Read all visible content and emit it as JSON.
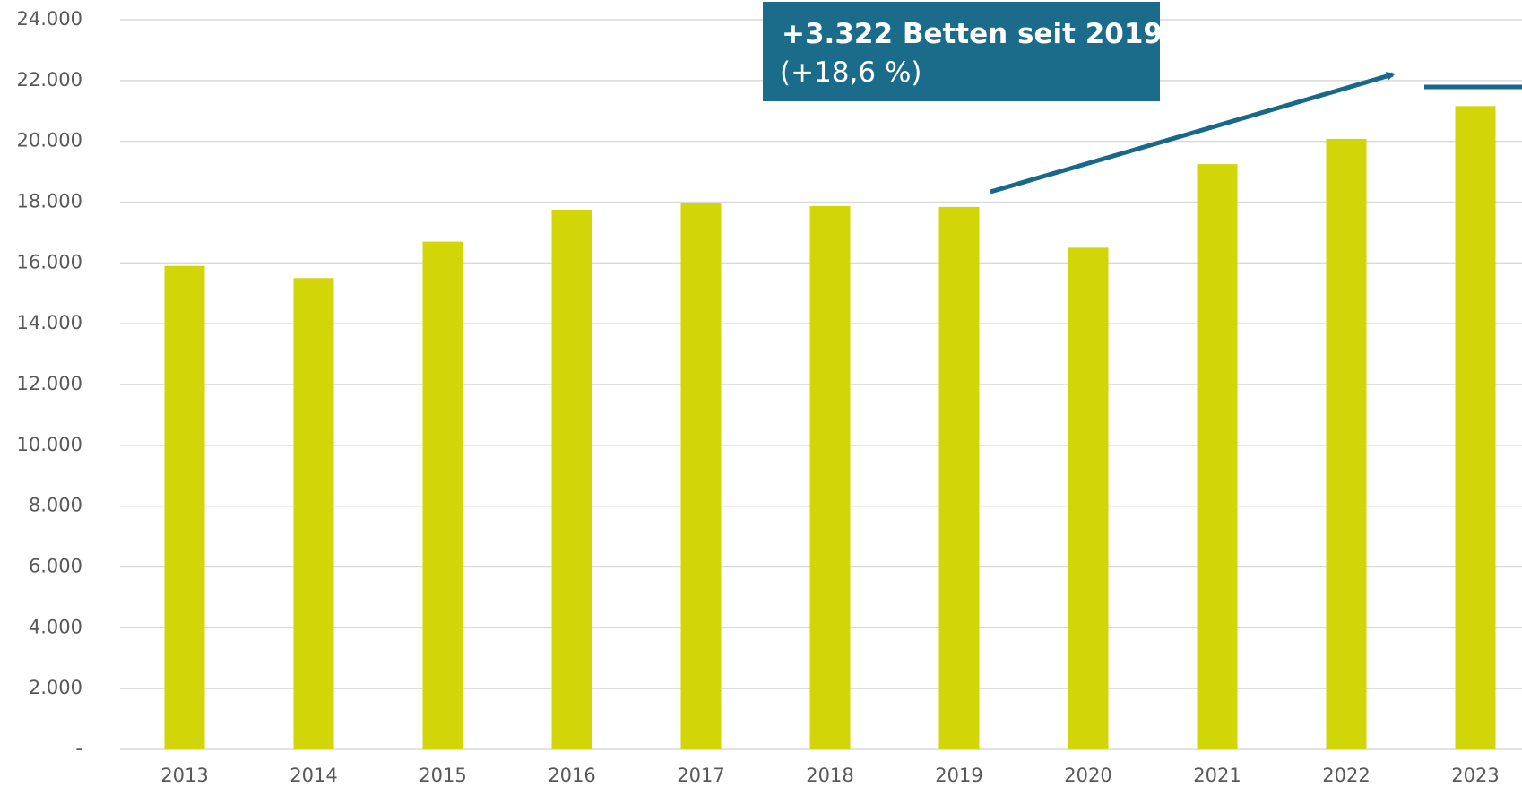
{
  "chart_data": {
    "type": "bar",
    "categories": [
      "2013",
      "2014",
      "2015",
      "2016",
      "2017",
      "2018",
      "2019",
      "2020",
      "2021",
      "2022",
      "2023"
    ],
    "values": [
      15900,
      15500,
      16700,
      17750,
      17970,
      17870,
      17840,
      16500,
      19250,
      20080,
      21160
    ],
    "color": "#d2d507",
    "ylim": [
      0,
      24000
    ],
    "yticks": [
      {
        "value": 0,
        "label": "-"
      },
      {
        "value": 2000,
        "label": "2.000"
      },
      {
        "value": 4000,
        "label": "4.000"
      },
      {
        "value": 6000,
        "label": "6.000"
      },
      {
        "value": 8000,
        "label": "8.000"
      },
      {
        "value": 10000,
        "label": "10.000"
      },
      {
        "value": 12000,
        "label": "12.000"
      },
      {
        "value": 14000,
        "label": "14.000"
      },
      {
        "value": 16000,
        "label": "16.000"
      },
      {
        "value": 18000,
        "label": "18.000"
      },
      {
        "value": 20000,
        "label": "20.000"
      },
      {
        "value": 22000,
        "label": "22.000"
      },
      {
        "value": 24000,
        "label": "24.000"
      }
    ],
    "grid": true,
    "annotation": [
      "+3.322 Betten seit 2019",
      "(+18,6 %)"
    ]
  }
}
